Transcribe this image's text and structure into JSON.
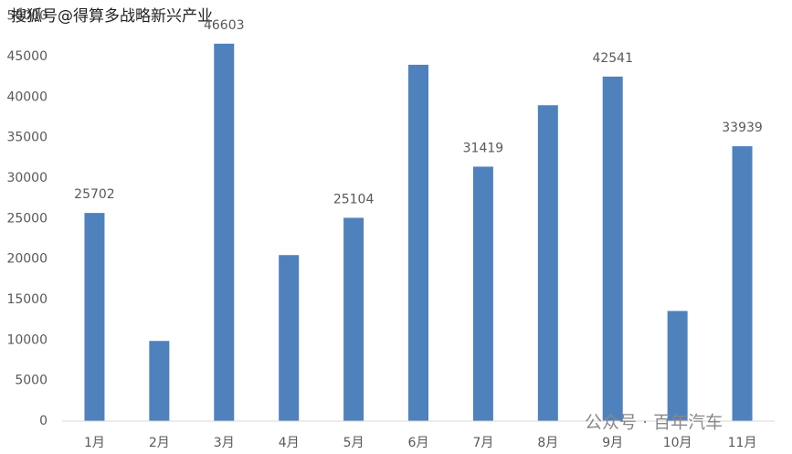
{
  "chart_data": {
    "type": "bar",
    "categories": [
      "1月",
      "2月",
      "3月",
      "4月",
      "5月",
      "6月",
      "7月",
      "8月",
      "9月",
      "10月",
      "11月"
    ],
    "values": [
      25702,
      9900,
      46603,
      20500,
      25104,
      44000,
      31419,
      39000,
      42541,
      13600,
      33939
    ],
    "labeled": [
      true,
      false,
      true,
      false,
      true,
      false,
      true,
      false,
      true,
      false,
      true
    ],
    "color": "#4f81bd",
    "ylim": [
      0,
      50000
    ],
    "yticks": [
      0,
      5000,
      10000,
      15000,
      20000,
      25000,
      30000,
      35000,
      40000,
      45000,
      50000
    ],
    "grid": false
  },
  "watermarks": [
    "搜狐号@得算多战略新兴产业",
    "公众号 · 百年汽车"
  ]
}
